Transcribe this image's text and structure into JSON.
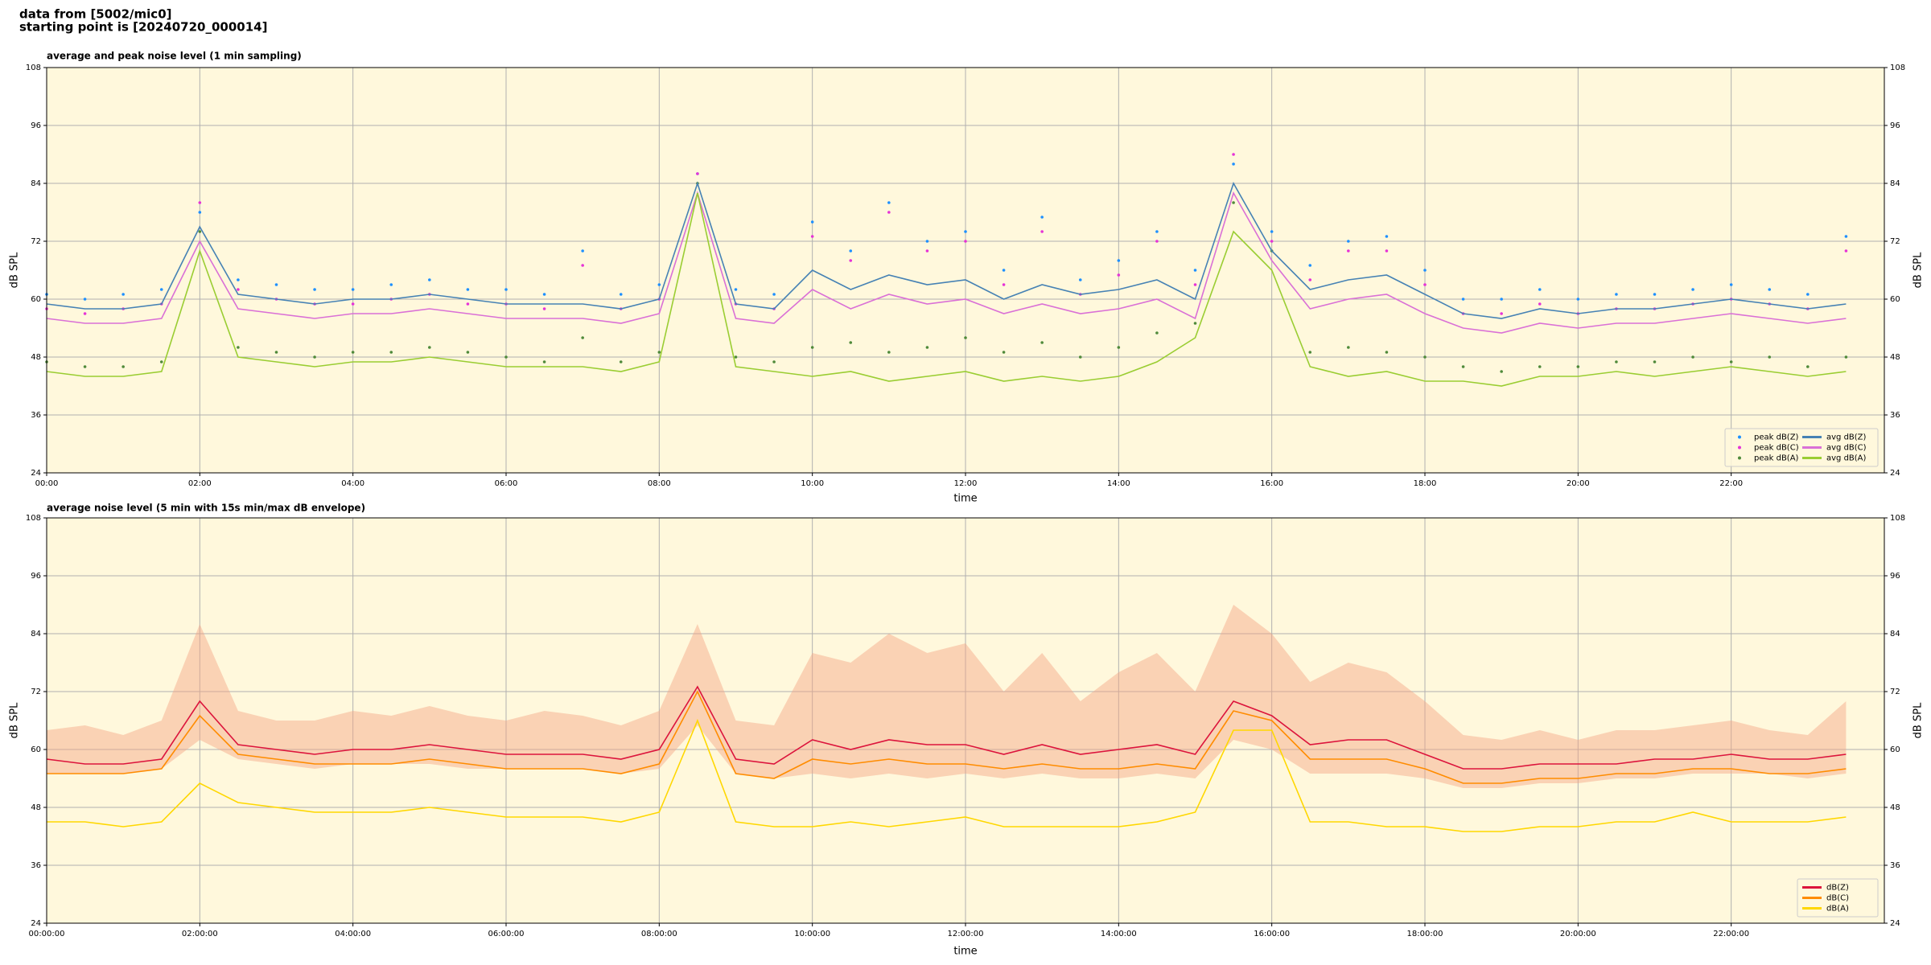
{
  "header": {
    "line1": "data from [5002/mic0]",
    "line2": "starting point is [20240720_000014]"
  },
  "chart_data": [
    {
      "type": "line",
      "title": "average and peak noise level (1 min sampling)",
      "x_label": "time",
      "y_label": "dB SPL",
      "x": [
        "00:00",
        "00:30",
        "01:00",
        "01:30",
        "02:00",
        "02:30",
        "03:00",
        "03:30",
        "04:00",
        "04:30",
        "05:00",
        "05:30",
        "06:00",
        "06:30",
        "07:00",
        "07:30",
        "08:00",
        "08:30",
        "09:00",
        "09:30",
        "10:00",
        "10:30",
        "11:00",
        "11:30",
        "12:00",
        "12:30",
        "13:00",
        "13:30",
        "14:00",
        "14:30",
        "15:00",
        "15:30",
        "16:00",
        "16:30",
        "17:00",
        "17:30",
        "18:00",
        "18:30",
        "19:00",
        "19:30",
        "20:00",
        "20:30",
        "21:00",
        "21:30",
        "22:00",
        "22:30",
        "23:00",
        "23:30"
      ],
      "xlim": [
        "00:00",
        "24:00"
      ],
      "xticks": [
        "00:00",
        "02:00",
        "04:00",
        "06:00",
        "08:00",
        "10:00",
        "12:00",
        "14:00",
        "16:00",
        "18:00",
        "20:00",
        "22:00"
      ],
      "ylim": [
        24,
        108
      ],
      "yticks": [
        24,
        36,
        48,
        60,
        72,
        84,
        96,
        108
      ],
      "grid": true,
      "legend": "lower right",
      "series": [
        {
          "name": "peak dB(Z)",
          "style": "scatter",
          "color": "#1e90ff",
          "values": [
            61,
            60,
            61,
            62,
            78,
            64,
            63,
            62,
            62,
            63,
            64,
            62,
            62,
            61,
            70,
            61,
            63,
            86,
            62,
            61,
            76,
            70,
            80,
            72,
            74,
            66,
            77,
            64,
            68,
            74,
            66,
            88,
            74,
            67,
            72,
            73,
            66,
            60,
            60,
            62,
            60,
            61,
            61,
            62,
            63,
            62,
            61,
            73
          ]
        },
        {
          "name": "peak dB(C)",
          "style": "scatter",
          "color": "#e633d6",
          "values": [
            58,
            57,
            58,
            59,
            80,
            62,
            60,
            59,
            59,
            60,
            61,
            59,
            59,
            58,
            67,
            58,
            60,
            86,
            59,
            58,
            73,
            68,
            78,
            70,
            72,
            63,
            74,
            61,
            65,
            72,
            63,
            90,
            72,
            64,
            70,
            70,
            63,
            57,
            57,
            59,
            57,
            58,
            58,
            59,
            60,
            59,
            58,
            70
          ]
        },
        {
          "name": "peak dB(A)",
          "style": "scatter",
          "color": "#4f8a3a",
          "values": [
            47,
            46,
            46,
            47,
            74,
            50,
            49,
            48,
            49,
            49,
            50,
            49,
            48,
            47,
            52,
            47,
            49,
            84,
            48,
            47,
            50,
            51,
            49,
            50,
            52,
            49,
            51,
            48,
            50,
            53,
            55,
            80,
            70,
            49,
            50,
            49,
            48,
            46,
            45,
            46,
            46,
            47,
            47,
            48,
            47,
            48,
            46,
            48
          ]
        },
        {
          "name": "avg dB(Z)",
          "style": "line",
          "color": "#4682b4",
          "values": [
            59,
            58,
            58,
            59,
            75,
            61,
            60,
            59,
            60,
            60,
            61,
            60,
            59,
            59,
            59,
            58,
            60,
            84,
            59,
            58,
            66,
            62,
            65,
            63,
            64,
            60,
            63,
            61,
            62,
            64,
            60,
            84,
            70,
            62,
            64,
            65,
            61,
            57,
            56,
            58,
            57,
            58,
            58,
            59,
            60,
            59,
            58,
            59
          ]
        },
        {
          "name": "avg dB(C)",
          "style": "line",
          "color": "#da70d6",
          "values": [
            56,
            55,
            55,
            56,
            72,
            58,
            57,
            56,
            57,
            57,
            58,
            57,
            56,
            56,
            56,
            55,
            57,
            82,
            56,
            55,
            62,
            58,
            61,
            59,
            60,
            57,
            59,
            57,
            58,
            60,
            56,
            82,
            68,
            58,
            60,
            61,
            57,
            54,
            53,
            55,
            54,
            55,
            55,
            56,
            57,
            56,
            55,
            56
          ]
        },
        {
          "name": "avg dB(A)",
          "style": "line",
          "color": "#9acd32",
          "values": [
            45,
            44,
            44,
            45,
            70,
            48,
            47,
            46,
            47,
            47,
            48,
            47,
            46,
            46,
            46,
            45,
            47,
            82,
            46,
            45,
            44,
            45,
            43,
            44,
            45,
            43,
            44,
            43,
            44,
            47,
            52,
            74,
            66,
            46,
            44,
            45,
            43,
            43,
            42,
            44,
            44,
            45,
            44,
            45,
            46,
            45,
            44,
            45
          ]
        }
      ]
    },
    {
      "type": "line",
      "title": "average noise level (5 min with 15s min/max dB envelope)",
      "x_label": "time",
      "y_label": "dB SPL",
      "x": [
        "00:00:00",
        "00:30:00",
        "01:00:00",
        "01:30:00",
        "02:00:00",
        "02:30:00",
        "03:00:00",
        "03:30:00",
        "04:00:00",
        "04:30:00",
        "05:00:00",
        "05:30:00",
        "06:00:00",
        "06:30:00",
        "07:00:00",
        "07:30:00",
        "08:00:00",
        "08:30:00",
        "09:00:00",
        "09:30:00",
        "10:00:00",
        "10:30:00",
        "11:00:00",
        "11:30:00",
        "12:00:00",
        "12:30:00",
        "13:00:00",
        "13:30:00",
        "14:00:00",
        "14:30:00",
        "15:00:00",
        "15:30:00",
        "16:00:00",
        "16:30:00",
        "17:00:00",
        "17:30:00",
        "18:00:00",
        "18:30:00",
        "19:00:00",
        "19:30:00",
        "20:00:00",
        "20:30:00",
        "21:00:00",
        "21:30:00",
        "22:00:00",
        "22:30:00",
        "23:00:00",
        "23:30:00"
      ],
      "xlim": [
        "00:00:00",
        "24:00:00"
      ],
      "xticks": [
        "00:00:00",
        "02:00:00",
        "04:00:00",
        "06:00:00",
        "08:00:00",
        "10:00:00",
        "12:00:00",
        "14:00:00",
        "16:00:00",
        "18:00:00",
        "20:00:00",
        "22:00:00"
      ],
      "ylim": [
        24,
        108
      ],
      "yticks": [
        24,
        36,
        48,
        60,
        72,
        84,
        96,
        108
      ],
      "grid": true,
      "legend": "lower right",
      "envelope": {
        "color": "#f4a582",
        "lower": [
          55,
          55,
          55,
          56,
          62,
          58,
          57,
          56,
          57,
          57,
          57,
          56,
          56,
          56,
          56,
          55,
          56,
          65,
          55,
          54,
          55,
          54,
          55,
          54,
          55,
          54,
          55,
          54,
          54,
          55,
          54,
          62,
          60,
          55,
          55,
          55,
          54,
          52,
          52,
          53,
          53,
          54,
          54,
          55,
          55,
          55,
          54,
          55
        ],
        "upper": [
          64,
          65,
          63,
          66,
          86,
          68,
          66,
          66,
          68,
          67,
          69,
          67,
          66,
          68,
          67,
          65,
          68,
          86,
          66,
          65,
          80,
          78,
          84,
          80,
          82,
          72,
          80,
          70,
          76,
          80,
          72,
          90,
          84,
          74,
          78,
          76,
          70,
          63,
          62,
          64,
          62,
          64,
          64,
          65,
          66,
          64,
          63,
          70
        ]
      },
      "series": [
        {
          "name": "dB(Z)",
          "style": "line",
          "color": "#dc143c",
          "values": [
            58,
            57,
            57,
            58,
            70,
            61,
            60,
            59,
            60,
            60,
            61,
            60,
            59,
            59,
            59,
            58,
            60,
            73,
            58,
            57,
            62,
            60,
            62,
            61,
            61,
            59,
            61,
            59,
            60,
            61,
            59,
            70,
            67,
            61,
            62,
            62,
            59,
            56,
            56,
            57,
            57,
            57,
            58,
            58,
            59,
            58,
            58,
            59
          ]
        },
        {
          "name": "dB(C)",
          "style": "line",
          "color": "#ff8c00",
          "values": [
            55,
            55,
            55,
            56,
            67,
            59,
            58,
            57,
            57,
            57,
            58,
            57,
            56,
            56,
            56,
            55,
            57,
            72,
            55,
            54,
            58,
            57,
            58,
            57,
            57,
            56,
            57,
            56,
            56,
            57,
            56,
            68,
            66,
            58,
            58,
            58,
            56,
            53,
            53,
            54,
            54,
            55,
            55,
            56,
            56,
            55,
            55,
            56
          ]
        },
        {
          "name": "dB(A)",
          "style": "line",
          "color": "#ffd700",
          "values": [
            45,
            45,
            44,
            45,
            53,
            49,
            48,
            47,
            47,
            47,
            48,
            47,
            46,
            46,
            46,
            45,
            47,
            66,
            45,
            44,
            44,
            45,
            44,
            45,
            46,
            44,
            44,
            44,
            44,
            45,
            47,
            64,
            64,
            45,
            45,
            44,
            44,
            43,
            43,
            44,
            44,
            45,
            45,
            47,
            45,
            45,
            45,
            46
          ]
        }
      ]
    }
  ]
}
